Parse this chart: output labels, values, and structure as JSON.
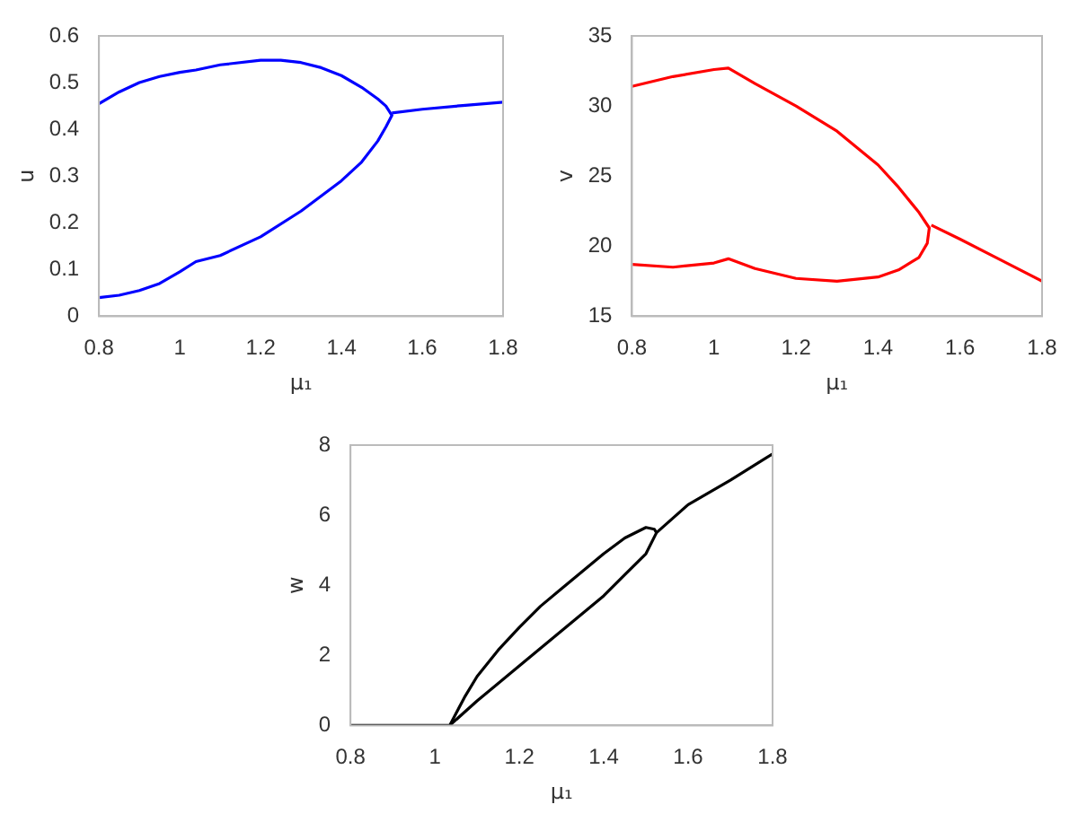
{
  "chart_data": [
    {
      "type": "line",
      "xlabel": "μ₁",
      "ylabel": "u",
      "xlim": [
        0.8,
        1.8
      ],
      "xticks": [
        0.8,
        1,
        1.2,
        1.4,
        1.6,
        1.8
      ],
      "ylim": [
        0,
        0.6
      ],
      "yticks": [
        0,
        0.1,
        0.2,
        0.3,
        0.4,
        0.5,
        0.6
      ],
      "marker": "none",
      "line_style": "solid",
      "series": [
        {
          "color": "#0000ff",
          "x": [
            0.8,
            0.85,
            0.9,
            0.95,
            1.0,
            1.04,
            1.1,
            1.2,
            1.25,
            1.3,
            1.35,
            1.4,
            1.45,
            1.49,
            1.51,
            1.525,
            1.51,
            1.49,
            1.45,
            1.4,
            1.3,
            1.2,
            1.1,
            1.04,
            1.0,
            0.95,
            0.9,
            0.85,
            0.8
          ],
          "values": [
            0.455,
            0.48,
            0.5,
            0.513,
            0.522,
            0.527,
            0.538,
            0.548,
            0.548,
            0.543,
            0.532,
            0.515,
            0.49,
            0.465,
            0.45,
            0.43,
            0.405,
            0.375,
            0.33,
            0.29,
            0.225,
            0.17,
            0.13,
            0.117,
            0.095,
            0.07,
            0.055,
            0.045,
            0.04
          ]
        },
        {
          "color": "#0000ff",
          "x": [
            1.525,
            1.6,
            1.7,
            1.8
          ],
          "values": [
            0.435,
            0.443,
            0.451,
            0.458
          ]
        }
      ]
    },
    {
      "type": "line",
      "xlabel": "μ₁",
      "ylabel": "v",
      "xlim": [
        0.8,
        1.8
      ],
      "xticks": [
        0.8,
        1,
        1.2,
        1.4,
        1.6,
        1.8
      ],
      "ylim": [
        15,
        35
      ],
      "yticks": [
        15,
        20,
        25,
        30,
        35
      ],
      "marker": "none",
      "line_style": "solid",
      "series": [
        {
          "color": "#ff0000",
          "x": [
            0.8,
            0.9,
            1.0,
            1.035,
            1.1,
            1.2,
            1.3,
            1.4,
            1.45,
            1.5,
            1.525,
            1.52,
            1.5,
            1.45,
            1.4,
            1.3,
            1.2,
            1.1,
            1.035,
            1.0,
            0.9,
            0.8
          ],
          "values": [
            31.4,
            32.1,
            32.6,
            32.7,
            31.6,
            30.0,
            28.2,
            25.8,
            24.2,
            22.4,
            21.3,
            20.2,
            19.2,
            18.3,
            17.8,
            17.5,
            17.7,
            18.4,
            19.1,
            18.8,
            18.5,
            18.7
          ]
        },
        {
          "color": "#ff0000",
          "x": [
            1.53,
            1.6,
            1.7,
            1.8
          ],
          "values": [
            21.5,
            20.5,
            19.0,
            17.5
          ]
        }
      ]
    },
    {
      "type": "line",
      "xlabel": "μ₁",
      "ylabel": "w",
      "xlim": [
        0.8,
        1.8
      ],
      "xticks": [
        0.8,
        1,
        1.2,
        1.4,
        1.6,
        1.8
      ],
      "ylim": [
        0,
        8
      ],
      "yticks": [
        0,
        2,
        4,
        6,
        8
      ],
      "marker": "none",
      "line_style": "solid",
      "series": [
        {
          "color": "#000000",
          "x": [
            0.8,
            0.9,
            1.0,
            1.035,
            1.07,
            1.1,
            1.15,
            1.2,
            1.25,
            1.3,
            1.35,
            1.4,
            1.45,
            1.5,
            1.52,
            1.525,
            1.6,
            1.7,
            1.8
          ],
          "values": [
            0,
            0,
            0,
            0,
            0.8,
            1.4,
            2.15,
            2.8,
            3.4,
            3.9,
            4.4,
            4.9,
            5.35,
            5.65,
            5.6,
            5.5,
            6.3,
            7.0,
            7.75
          ]
        },
        {
          "color": "#000000",
          "x": [
            1.035,
            1.1,
            1.2,
            1.3,
            1.4,
            1.45,
            1.5,
            1.525
          ],
          "values": [
            0,
            0.7,
            1.7,
            2.7,
            3.7,
            4.3,
            4.9,
            5.5
          ]
        }
      ]
    }
  ]
}
